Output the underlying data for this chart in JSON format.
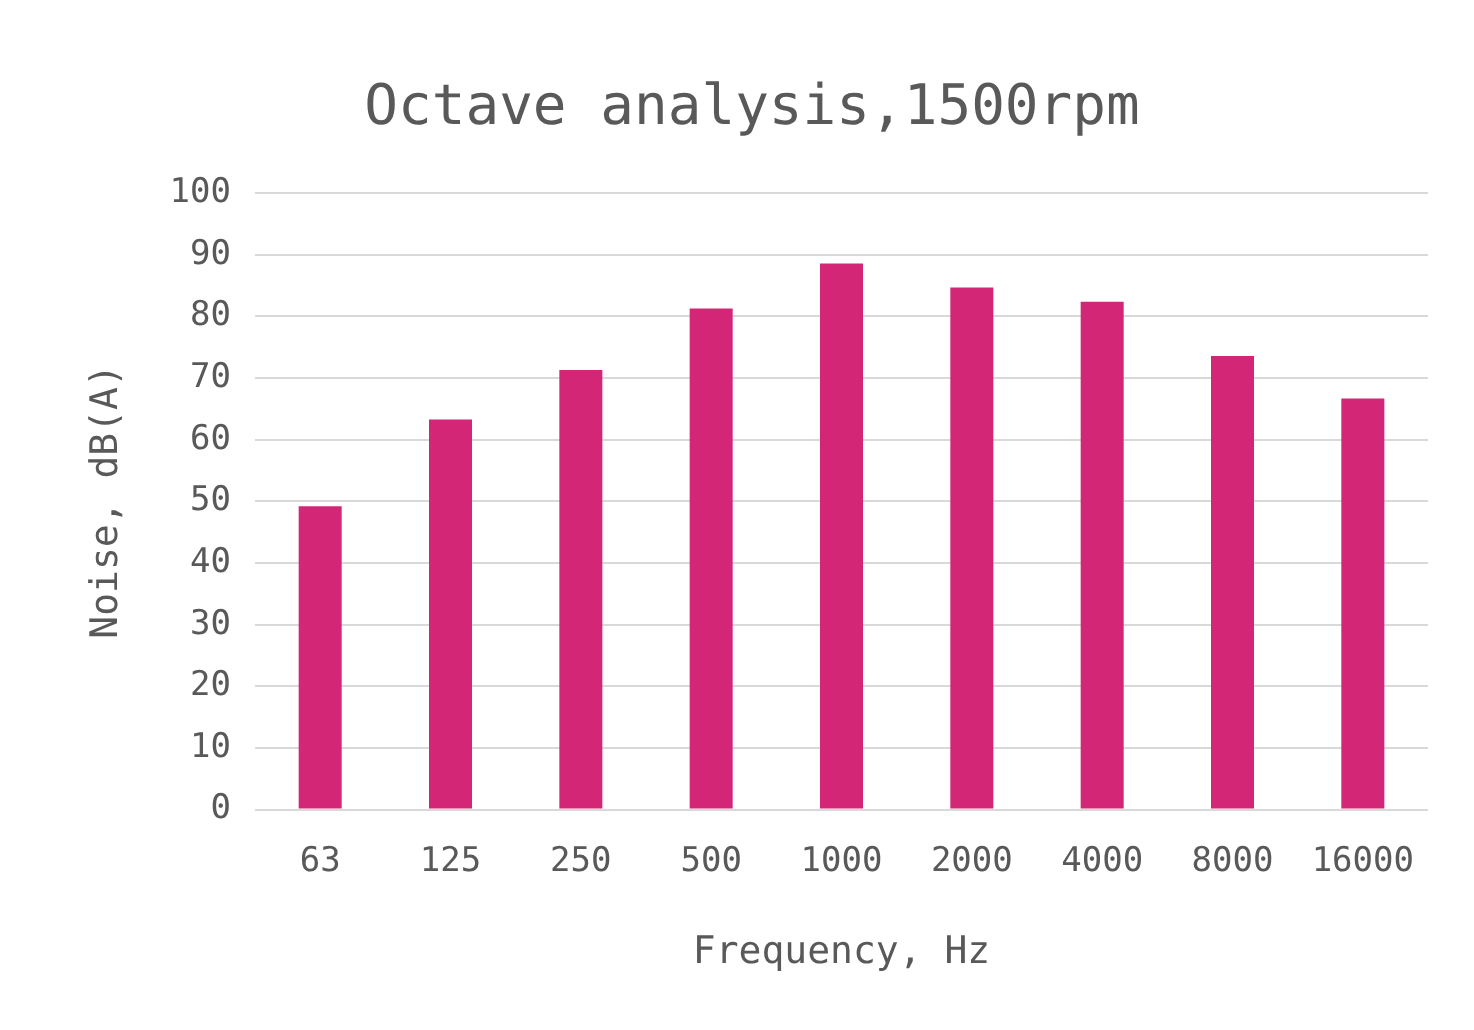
{
  "chart_data": {
    "type": "bar",
    "title": "Octave analysis,1500rpm",
    "xlabel": "Frequency, Hz",
    "ylabel": "Noise, dB(A)",
    "categories": [
      "63",
      "125",
      "250",
      "500",
      "1000",
      "2000",
      "4000",
      "8000",
      "16000"
    ],
    "values": [
      49.2,
      63.3,
      71.3,
      81.3,
      88.6,
      84.7,
      82.4,
      73.6,
      66.7
    ],
    "color": "#d42677",
    "ylim": [
      0,
      100
    ],
    "yticks": [
      0,
      10,
      20,
      30,
      40,
      50,
      60,
      70,
      80,
      90,
      100
    ],
    "grid": "y"
  }
}
